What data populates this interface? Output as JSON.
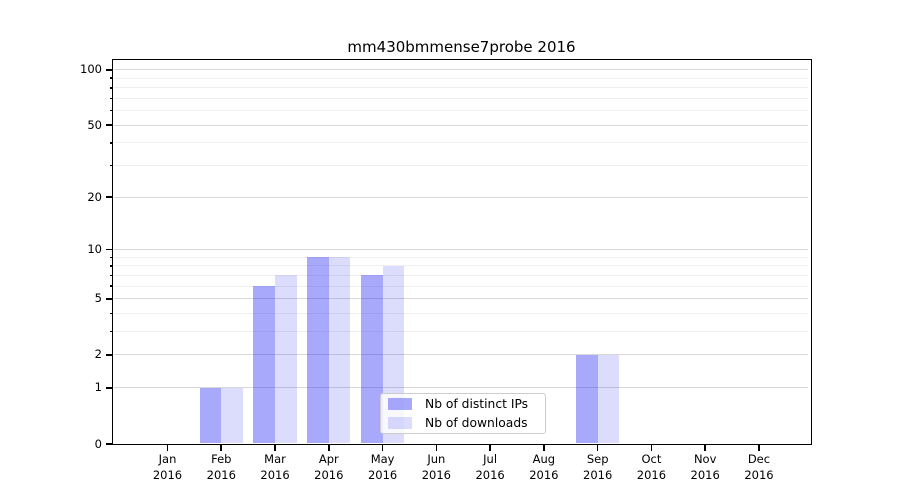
{
  "chart_data": {
    "type": "bar",
    "title": "mm430bmmense7probe 2016",
    "categories": [
      "Jan",
      "Feb",
      "Mar",
      "Apr",
      "May",
      "Jun",
      "Jul",
      "Aug",
      "Sep",
      "Oct",
      "Nov",
      "Dec"
    ],
    "category_sublabel": "2016",
    "series": [
      {
        "name": "Nb of distinct IPs",
        "color": "rgba(40,40,245,0.40)",
        "color_on_white": "#a9a9f9",
        "values": [
          0,
          1,
          6,
          9,
          7,
          0,
          0,
          0,
          2,
          0,
          0,
          0
        ]
      },
      {
        "name": "Nb of downloads",
        "color": "rgba(40,40,245,0.16)",
        "color_on_white": "#dcdcfa",
        "values": [
          0,
          1,
          7,
          9,
          8,
          0,
          0,
          0,
          2,
          0,
          0,
          0
        ]
      }
    ],
    "xlabel": "",
    "ylabel": "",
    "yscale": "log1p",
    "ylim": [
      0,
      113
    ],
    "yticks": [
      0,
      1,
      2,
      5,
      10,
      20,
      50,
      100
    ],
    "yticks_minor": [
      3,
      4,
      6,
      7,
      8,
      9,
      30,
      40,
      60,
      70,
      80,
      90
    ],
    "grid": true,
    "grid_major_color": "#d8d8d8",
    "grid_minor_color": "#efefef",
    "legend": {
      "position": "lower center",
      "entries": [
        "Nb of distinct IPs",
        "Nb of downloads"
      ]
    }
  }
}
